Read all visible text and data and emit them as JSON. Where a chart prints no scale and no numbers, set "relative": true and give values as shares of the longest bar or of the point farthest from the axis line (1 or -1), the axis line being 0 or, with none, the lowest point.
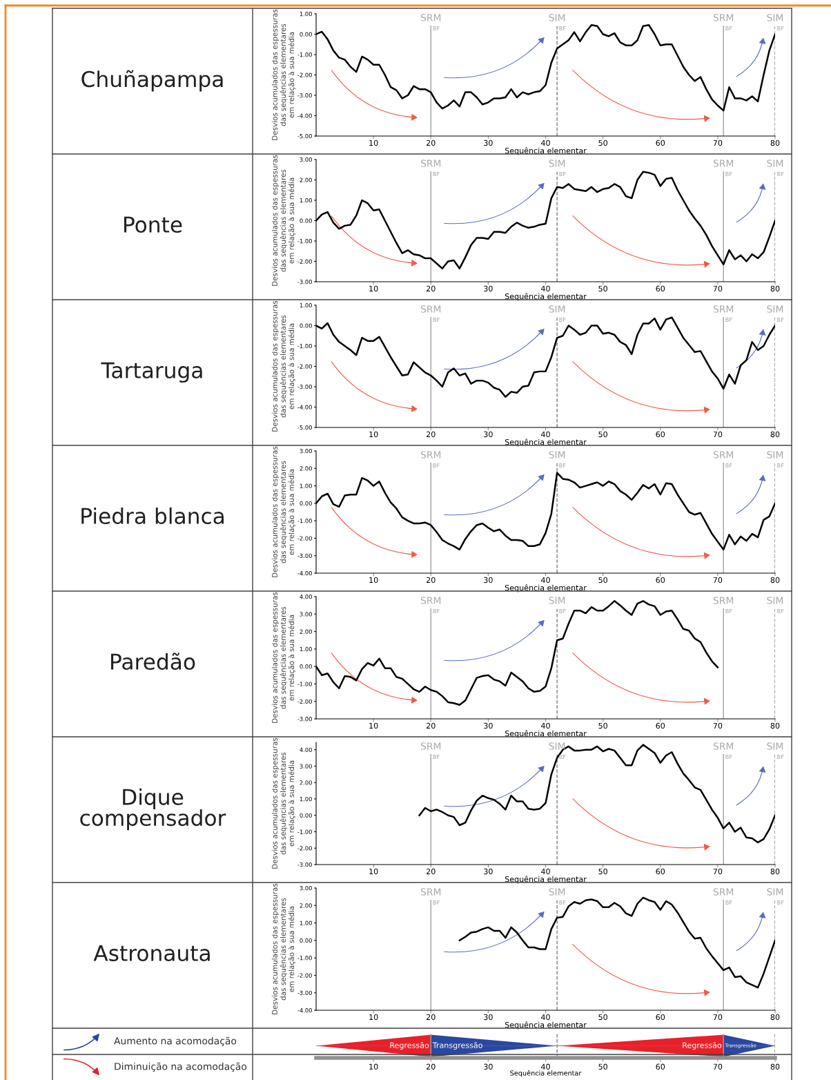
{
  "chart_data": [
    {
      "type": "line",
      "title": "Chuñapampa",
      "xlabel": "Sequência elementar",
      "ylabel": "Desvios acumulados das espessuras\ndas sequências elementares\nem relação à sua média",
      "xlim": [
        0,
        80
      ],
      "xticks": [
        10,
        20,
        30,
        40,
        50,
        60,
        70,
        80
      ],
      "ylim": [
        -5,
        1
      ],
      "yticks": [
        {
          "value": 1,
          "label": "1.00"
        },
        {
          "value": 0,
          "label": "0.00"
        },
        {
          "value": -1,
          "label": "-1.00"
        },
        {
          "value": -2,
          "label": "-2.00"
        },
        {
          "value": -3,
          "label": "-3.00"
        },
        {
          "value": -4,
          "label": "-4.00"
        },
        {
          "value": -5,
          "label": "-5.00"
        }
      ],
      "marker": "none",
      "line_style": "solid",
      "ref_lines": [
        {
          "axis": "x",
          "value": 20,
          "label": "SRM\nBF",
          "color": "#a0a0a0",
          "line_style": "solid"
        },
        {
          "axis": "x",
          "value": 42,
          "label": "SIM\nBF",
          "color": "#808080",
          "line_style": "dashed"
        },
        {
          "axis": "x",
          "value": 71,
          "label": "SRM\nBF",
          "color": "#a0a0a0",
          "line_style": "solid"
        },
        {
          "axis": "x",
          "value": 80,
          "label": "SIM\nBF",
          "color": "#808080",
          "line_style": "dashed"
        }
      ],
      "series": [
        {
          "color": "#000000",
          "x": [
            0,
            1,
            2,
            3,
            4,
            5,
            6,
            7,
            8,
            9,
            10,
            11,
            12,
            13,
            14,
            15,
            16,
            17,
            18,
            19,
            20,
            21,
            22,
            23,
            24,
            25,
            26,
            27,
            28,
            29,
            30,
            31,
            32,
            33,
            34,
            35,
            36,
            37,
            38,
            39,
            40,
            41,
            42,
            43,
            44,
            45,
            46,
            47,
            48,
            49,
            50,
            51,
            52,
            53,
            54,
            55,
            56,
            57,
            58,
            59,
            60,
            61,
            62,
            63,
            64,
            65,
            66,
            67,
            68,
            69,
            70,
            71,
            72,
            73,
            74,
            75,
            76,
            77,
            78,
            79,
            80
          ],
          "values": [
            0,
            0.12,
            -0.25,
            -0.8,
            -1.15,
            -1.25,
            -1.6,
            -1.85,
            -1.1,
            -1.25,
            -1.5,
            -1.5,
            -2.0,
            -2.6,
            -2.75,
            -3.15,
            -3.0,
            -2.55,
            -2.7,
            -2.7,
            -2.85,
            -3.35,
            -3.65,
            -3.5,
            -3.25,
            -3.55,
            -2.85,
            -2.85,
            -3.1,
            -3.45,
            -3.35,
            -3.15,
            -3.15,
            -3.1,
            -2.7,
            -3.1,
            -2.85,
            -2.95,
            -2.85,
            -2.8,
            -2.5,
            -1.4,
            -0.7,
            -0.5,
            -0.3,
            0.1,
            -0.35,
            0.1,
            0.45,
            0.4,
            0.0,
            -0.1,
            0.05,
            -0.4,
            -0.55,
            -0.55,
            -0.3,
            0.4,
            0.45,
            0.0,
            -0.55,
            -0.5,
            -0.5,
            -1.05,
            -1.6,
            -2.0,
            -2.3,
            -2.1,
            -2.7,
            -3.2,
            -3.5,
            -3.75,
            -2.6,
            -3.15,
            -3.15,
            -3.25,
            -3.05,
            -3.3,
            -2.0,
            -0.8,
            0.0
          ]
        }
      ]
    },
    {
      "type": "line",
      "title": "Ponte",
      "xlabel": "Sequência elementar",
      "ylabel": "Desvios acumulados das espessuras\ndas sequências elementares\nem relação à sua média",
      "xlim": [
        0,
        80
      ],
      "xticks": [
        10,
        20,
        30,
        40,
        50,
        60,
        70,
        80
      ],
      "ylim": [
        -3,
        3
      ],
      "yticks": [
        {
          "value": 3,
          "label": "3.00"
        },
        {
          "value": 2,
          "label": "2.00"
        },
        {
          "value": 1,
          "label": "1.00"
        },
        {
          "value": 0,
          "label": "0.00"
        },
        {
          "value": -1,
          "label": "-1.00"
        },
        {
          "value": -2,
          "label": "-2.00"
        },
        {
          "value": -3,
          "label": "-3.00"
        }
      ],
      "marker": "none",
      "line_style": "solid",
      "ref_lines": [
        {
          "axis": "x",
          "value": 20,
          "label": "SRM\nBF",
          "color": "#a0a0a0",
          "line_style": "solid"
        },
        {
          "axis": "x",
          "value": 42,
          "label": "SIM\nBF",
          "color": "#808080",
          "line_style": "dashed"
        },
        {
          "axis": "x",
          "value": 71,
          "label": "SRM\nBF",
          "color": "#a0a0a0",
          "line_style": "solid"
        },
        {
          "axis": "x",
          "value": 80,
          "label": "SIM\nBF",
          "color": "#808080",
          "line_style": "dashed"
        }
      ],
      "series": [
        {
          "color": "#000000",
          "x": [
            0,
            1,
            2,
            3,
            4,
            5,
            6,
            7,
            8,
            9,
            10,
            11,
            12,
            13,
            14,
            15,
            16,
            17,
            18,
            19,
            20,
            21,
            22,
            23,
            24,
            25,
            26,
            27,
            28,
            29,
            30,
            31,
            32,
            33,
            34,
            35,
            36,
            37,
            38,
            39,
            40,
            41,
            42,
            43,
            44,
            45,
            46,
            47,
            48,
            49,
            50,
            51,
            52,
            53,
            54,
            55,
            56,
            57,
            58,
            59,
            60,
            61,
            62,
            63,
            64,
            65,
            66,
            67,
            68,
            69,
            70,
            71,
            72,
            73,
            74,
            75,
            76,
            77,
            78,
            79,
            80
          ],
          "values": [
            0,
            0.3,
            0.42,
            -0.1,
            -0.4,
            -0.25,
            -0.2,
            0.25,
            1.0,
            0.85,
            0.5,
            0.55,
            0.0,
            -0.55,
            -1.1,
            -1.6,
            -1.45,
            -1.65,
            -1.7,
            -1.85,
            -1.85,
            -2.1,
            -2.35,
            -2.0,
            -1.95,
            -2.35,
            -1.8,
            -1.2,
            -0.85,
            -0.85,
            -0.9,
            -0.55,
            -0.55,
            -0.6,
            -0.3,
            -0.1,
            -0.25,
            -0.35,
            -0.3,
            -0.2,
            -0.15,
            1.1,
            1.65,
            1.6,
            1.8,
            1.55,
            1.5,
            1.45,
            1.65,
            1.4,
            1.55,
            1.6,
            1.8,
            1.65,
            1.2,
            1.1,
            2.0,
            2.4,
            2.35,
            2.25,
            1.7,
            2.05,
            2.1,
            1.5,
            1.0,
            0.5,
            0.1,
            -0.25,
            -0.7,
            -1.25,
            -1.7,
            -2.15,
            -1.45,
            -1.9,
            -1.7,
            -2.0,
            -1.65,
            -1.85,
            -1.55,
            -0.8,
            0.0
          ]
        }
      ]
    },
    {
      "type": "line",
      "title": "Tartaruga",
      "xlabel": "Sequência elementar",
      "ylabel": "Desvios acumulados das espessuras\ndas sequências elementares\nem relação à sua média",
      "xlim": [
        0,
        80
      ],
      "xticks": [
        10,
        20,
        30,
        40,
        50,
        60,
        70,
        80
      ],
      "ylim": [
        -5,
        1
      ],
      "yticks": [
        {
          "value": 1,
          "label": "1.00"
        },
        {
          "value": 0,
          "label": "0.00"
        },
        {
          "value": -1,
          "label": "-1.00"
        },
        {
          "value": -2,
          "label": "-2.00"
        },
        {
          "value": -3,
          "label": "-3.00"
        },
        {
          "value": -4,
          "label": "-4.00"
        },
        {
          "value": -5,
          "label": "-5.00"
        }
      ],
      "marker": "none",
      "line_style": "solid",
      "ref_lines": [
        {
          "axis": "x",
          "value": 20,
          "label": "SRM\nBF",
          "color": "#a0a0a0",
          "line_style": "solid"
        },
        {
          "axis": "x",
          "value": 42,
          "label": "SIM\nBF",
          "color": "#808080",
          "line_style": "dashed"
        },
        {
          "axis": "x",
          "value": 71,
          "label": "SRM\nBF",
          "color": "#a0a0a0",
          "line_style": "solid"
        },
        {
          "axis": "x",
          "value": 80,
          "label": "SIM\nBF",
          "color": "#808080",
          "line_style": "dashed"
        }
      ],
      "series": [
        {
          "color": "#000000",
          "x": [
            0,
            1,
            2,
            3,
            4,
            5,
            6,
            7,
            8,
            9,
            10,
            11,
            12,
            13,
            14,
            15,
            16,
            17,
            18,
            19,
            20,
            21,
            22,
            23,
            24,
            25,
            26,
            27,
            28,
            29,
            30,
            31,
            32,
            33,
            34,
            35,
            36,
            37,
            38,
            39,
            40,
            41,
            42,
            43,
            44,
            45,
            46,
            47,
            48,
            49,
            50,
            51,
            52,
            53,
            54,
            55,
            56,
            57,
            58,
            59,
            60,
            61,
            62,
            63,
            64,
            65,
            66,
            67,
            68,
            69,
            70,
            71,
            72,
            73,
            74,
            75,
            76,
            77,
            78,
            79,
            80
          ],
          "values": [
            0,
            -0.15,
            0.12,
            -0.45,
            -0.8,
            -1.0,
            -1.2,
            -1.45,
            -0.6,
            -0.75,
            -0.75,
            -0.55,
            -1.05,
            -1.55,
            -2.0,
            -2.45,
            -2.4,
            -1.8,
            -2.05,
            -2.3,
            -2.45,
            -2.7,
            -3.0,
            -2.3,
            -2.1,
            -2.45,
            -2.35,
            -2.85,
            -2.7,
            -2.7,
            -2.8,
            -3.05,
            -3.15,
            -3.5,
            -3.25,
            -3.3,
            -3.0,
            -2.95,
            -2.3,
            -2.25,
            -2.25,
            -1.55,
            -0.6,
            -0.5,
            0.0,
            -0.2,
            -0.45,
            -0.35,
            0.0,
            0.0,
            -0.4,
            -0.35,
            -0.45,
            -0.8,
            -0.95,
            -1.4,
            -0.45,
            0.1,
            0.1,
            0.35,
            -0.2,
            0.3,
            0.4,
            -0.1,
            -0.6,
            -0.95,
            -1.3,
            -1.25,
            -1.75,
            -2.25,
            -2.6,
            -3.1,
            -2.4,
            -2.85,
            -1.95,
            -1.7,
            -0.8,
            -1.2,
            -1.0,
            -0.45,
            0.0
          ]
        }
      ]
    },
    {
      "type": "line",
      "title": "Piedra blanca",
      "xlabel": "Sequência elementar",
      "ylabel": "Desvios acumulados das espessuras\ndas sequências elementares\nem relação à sua média",
      "xlim": [
        0,
        80
      ],
      "xticks": [
        10,
        20,
        30,
        40,
        50,
        60,
        70,
        80
      ],
      "ylim": [
        -4,
        3
      ],
      "yticks": [
        {
          "value": 3,
          "label": "3.00"
        },
        {
          "value": 2,
          "label": "2.00"
        },
        {
          "value": 1,
          "label": "1.00"
        },
        {
          "value": 0,
          "label": "0.00"
        },
        {
          "value": -1,
          "label": "-1.00"
        },
        {
          "value": -2,
          "label": "-2.00"
        },
        {
          "value": -3,
          "label": "-3.00"
        },
        {
          "value": -4,
          "label": "-4.00"
        }
      ],
      "marker": "none",
      "line_style": "solid",
      "ref_lines": [
        {
          "axis": "x",
          "value": 20,
          "label": "SRM\nBF",
          "color": "#a0a0a0",
          "line_style": "solid"
        },
        {
          "axis": "x",
          "value": 42,
          "label": "SIM\nBF",
          "color": "#808080",
          "line_style": "dashed"
        },
        {
          "axis": "x",
          "value": 71,
          "label": "SRM\nBF",
          "color": "#a0a0a0",
          "line_style": "solid"
        },
        {
          "axis": "x",
          "value": 80,
          "label": "SIM\nBF",
          "color": "#808080",
          "line_style": "dashed"
        }
      ],
      "series": [
        {
          "color": "#000000",
          "x": [
            0,
            1,
            2,
            3,
            4,
            5,
            6,
            7,
            8,
            9,
            10,
            11,
            12,
            13,
            14,
            15,
            16,
            17,
            18,
            19,
            20,
            21,
            22,
            23,
            24,
            25,
            26,
            27,
            28,
            29,
            30,
            31,
            32,
            33,
            34,
            35,
            36,
            37,
            38,
            39,
            40,
            41,
            42,
            43,
            44,
            45,
            46,
            47,
            48,
            49,
            50,
            51,
            52,
            53,
            54,
            55,
            56,
            57,
            58,
            59,
            60,
            61,
            62,
            63,
            64,
            65,
            66,
            67,
            68,
            69,
            70,
            71,
            72,
            73,
            74,
            75,
            76,
            77,
            78,
            79,
            80
          ],
          "values": [
            0,
            0.4,
            0.55,
            -0.05,
            -0.2,
            0.45,
            0.5,
            0.5,
            1.45,
            1.3,
            1.0,
            1.25,
            0.6,
            0.05,
            -0.3,
            -0.8,
            -1.0,
            -1.15,
            -1.15,
            -1.1,
            -1.25,
            -1.65,
            -2.1,
            -2.3,
            -2.45,
            -2.65,
            -2.05,
            -1.6,
            -1.25,
            -1.15,
            -1.4,
            -1.6,
            -1.5,
            -1.85,
            -2.1,
            -2.1,
            -2.15,
            -2.45,
            -2.45,
            -2.35,
            -1.7,
            -0.6,
            1.75,
            1.4,
            1.35,
            1.2,
            0.9,
            1.0,
            1.1,
            1.2,
            1.0,
            1.25,
            1.1,
            0.7,
            0.5,
            0.2,
            0.6,
            1.05,
            0.85,
            1.1,
            0.5,
            1.15,
            1.1,
            0.5,
            0.0,
            -0.5,
            -0.65,
            -0.55,
            -1.15,
            -1.75,
            -2.2,
            -2.65,
            -1.8,
            -2.35,
            -1.9,
            -2.15,
            -1.75,
            -1.95,
            -0.95,
            -0.75,
            0.0
          ]
        }
      ]
    },
    {
      "type": "line",
      "title": "Paredão",
      "xlabel": "Sequência elementar",
      "ylabel": "Desvios acumulados das espessuras\ndas sequências elementares\nem relação à sua média",
      "xlim": [
        0,
        80
      ],
      "xticks": [
        10,
        20,
        30,
        40,
        50,
        60,
        70,
        80
      ],
      "ylim": [
        -3,
        4
      ],
      "yticks": [
        {
          "value": 4,
          "label": "4.00"
        },
        {
          "value": 3,
          "label": "3.00"
        },
        {
          "value": 2,
          "label": "2.00"
        },
        {
          "value": 1,
          "label": "1.00"
        },
        {
          "value": 0,
          "label": "0.00"
        },
        {
          "value": -1,
          "label": "-1.00"
        },
        {
          "value": -2,
          "label": "-2.00"
        },
        {
          "value": -3,
          "label": "-3.00"
        }
      ],
      "marker": "none",
      "line_style": "solid",
      "ref_lines": [
        {
          "axis": "x",
          "value": 20,
          "label": "SRM\nBF",
          "color": "#a0a0a0",
          "line_style": "solid"
        },
        {
          "axis": "x",
          "value": 42,
          "label": "SIM\nBF",
          "color": "#808080",
          "line_style": "dashed"
        },
        {
          "axis": "x",
          "value": 71,
          "label": "SRM\nBF",
          "color": "#a0a0a0",
          "line_style": "solid"
        },
        {
          "axis": "x",
          "value": 80,
          "label": "SIM\nBF",
          "color": "#808080",
          "line_style": "dashed"
        }
      ],
      "series": [
        {
          "color": "#000000",
          "x": [
            0,
            1,
            2,
            3,
            4,
            5,
            6,
            7,
            8,
            9,
            10,
            11,
            12,
            13,
            14,
            15,
            16,
            17,
            18,
            19,
            20,
            21,
            22,
            23,
            24,
            25,
            26,
            27,
            28,
            29,
            30,
            31,
            32,
            33,
            34,
            35,
            36,
            37,
            38,
            39,
            40,
            41,
            42,
            43,
            44,
            45,
            46,
            47,
            48,
            49,
            50,
            51,
            52,
            53,
            54,
            55,
            56,
            57,
            58,
            59,
            60,
            61,
            62,
            63,
            64,
            65,
            66,
            67,
            68,
            69,
            70
          ],
          "values": [
            0,
            -0.5,
            -0.4,
            -0.9,
            -1.25,
            -0.55,
            -0.6,
            -0.8,
            -0.15,
            0.2,
            0.05,
            0.45,
            -0.1,
            -0.1,
            -0.6,
            -0.7,
            -1.0,
            -1.3,
            -1.45,
            -1.15,
            -1.35,
            -1.45,
            -1.7,
            -2.05,
            -2.1,
            -2.2,
            -1.95,
            -1.3,
            -0.65,
            -0.55,
            -0.5,
            -0.75,
            -0.85,
            -1.1,
            -0.35,
            -0.6,
            -0.85,
            -1.25,
            -1.45,
            -1.4,
            -1.15,
            -0.1,
            1.5,
            1.6,
            2.45,
            3.2,
            3.2,
            3.05,
            3.4,
            3.2,
            3.2,
            3.45,
            3.75,
            3.5,
            3.2,
            2.95,
            3.6,
            3.75,
            3.55,
            3.45,
            2.95,
            3.15,
            3.2,
            2.7,
            2.15,
            2.05,
            1.6,
            1.4,
            0.8,
            0.3,
            -0.05
          ]
        }
      ]
    },
    {
      "type": "line",
      "title": "Dique compensador",
      "xlabel": "Sequência elementar",
      "ylabel": "Desvios acumulados das espessuras\ndas sequências elementares\nem relação à sua média",
      "xlim": [
        0,
        80
      ],
      "xticks": [
        10,
        20,
        30,
        40,
        50,
        60,
        70,
        80
      ],
      "ylim": [
        -3,
        4.45
      ],
      "yticks": [
        {
          "value": 4,
          "label": "4.00"
        },
        {
          "value": 3,
          "label": "3.00"
        },
        {
          "value": 2,
          "label": "2.00"
        },
        {
          "value": 1,
          "label": "1.00"
        },
        {
          "value": 0,
          "label": "0.00"
        },
        {
          "value": -1,
          "label": "-1.00"
        },
        {
          "value": -2,
          "label": "-2.00"
        },
        {
          "value": -3,
          "label": "-3.00"
        }
      ],
      "marker": "none",
      "line_style": "solid",
      "ref_lines": [
        {
          "axis": "x",
          "value": 20,
          "label": "SRM\nBF",
          "color": "#a0a0a0",
          "line_style": "solid"
        },
        {
          "axis": "x",
          "value": 42,
          "label": "SIM\nBF",
          "color": "#808080",
          "line_style": "dashed"
        },
        {
          "axis": "x",
          "value": 71,
          "label": "SRM\nBF",
          "color": "#a0a0a0",
          "line_style": "solid"
        },
        {
          "axis": "x",
          "value": 80,
          "label": "SIM\nBF",
          "color": "#808080",
          "line_style": "dashed"
        }
      ],
      "series": [
        {
          "color": "#000000",
          "x": [
            18,
            19,
            20,
            21,
            22,
            23,
            24,
            25,
            26,
            27,
            28,
            29,
            30,
            31,
            32,
            33,
            34,
            35,
            36,
            37,
            38,
            39,
            40,
            41,
            42,
            43,
            44,
            45,
            46,
            47,
            48,
            49,
            50,
            51,
            52,
            53,
            54,
            55,
            56,
            57,
            58,
            59,
            60,
            61,
            62,
            63,
            64,
            65,
            66,
            67,
            68,
            69,
            70,
            71,
            72,
            73,
            74,
            75,
            76,
            77,
            78,
            79,
            80
          ],
          "values": [
            0,
            0.45,
            0.25,
            0.35,
            0.2,
            0.0,
            -0.1,
            -0.6,
            -0.45,
            0.3,
            0.9,
            1.2,
            1.05,
            0.95,
            0.7,
            0.35,
            1.2,
            0.85,
            0.85,
            0.4,
            0.35,
            0.4,
            0.75,
            2.5,
            3.5,
            4.0,
            4.2,
            3.95,
            3.95,
            4.0,
            4.0,
            4.2,
            3.9,
            4.05,
            3.95,
            3.5,
            3.05,
            3.05,
            3.95,
            4.3,
            4.05,
            3.8,
            3.2,
            3.65,
            3.85,
            3.15,
            2.55,
            2.15,
            1.7,
            1.55,
            0.95,
            0.35,
            -0.15,
            -0.8,
            -0.45,
            -1.0,
            -0.75,
            -1.35,
            -1.4,
            -1.65,
            -1.45,
            -0.85,
            0.0
          ]
        }
      ]
    },
    {
      "type": "line",
      "title": "Astronauta",
      "xlabel": "Sequência elementar",
      "ylabel": "Desvios acumulados das espessuras\ndas sequências elementares\nem relação à sua média",
      "xlim": [
        0,
        80
      ],
      "xticks": [
        10,
        20,
        30,
        40,
        50,
        60,
        70,
        80
      ],
      "ylim": [
        -4,
        3
      ],
      "yticks": [
        {
          "value": 3,
          "label": "3.00"
        },
        {
          "value": 2,
          "label": "2.00"
        },
        {
          "value": 1,
          "label": "1.00"
        },
        {
          "value": 0,
          "label": "0.00"
        },
        {
          "value": -1,
          "label": "-1.00"
        },
        {
          "value": -2,
          "label": "-2.00"
        },
        {
          "value": -3,
          "label": "-3.00"
        },
        {
          "value": -4,
          "label": "-4.00"
        }
      ],
      "marker": "none",
      "line_style": "solid",
      "ref_lines": [
        {
          "axis": "x",
          "value": 20,
          "label": "SRM\nBF",
          "color": "#a0a0a0",
          "line_style": "solid"
        },
        {
          "axis": "x",
          "value": 42,
          "label": "SIM\nBF",
          "color": "#808080",
          "line_style": "dashed"
        },
        {
          "axis": "x",
          "value": 71,
          "label": "SRM\nBF",
          "color": "#a0a0a0",
          "line_style": "solid"
        },
        {
          "axis": "x",
          "value": 80,
          "label": "SIM\nBF",
          "color": "#808080",
          "line_style": "dashed"
        }
      ],
      "series": [
        {
          "color": "#000000",
          "x": [
            25,
            26,
            27,
            28,
            29,
            30,
            31,
            32,
            33,
            34,
            35,
            36,
            37,
            38,
            39,
            40,
            41,
            42,
            43,
            44,
            45,
            46,
            47,
            48,
            49,
            50,
            51,
            52,
            53,
            54,
            55,
            56,
            57,
            58,
            59,
            60,
            61,
            62,
            63,
            64,
            65,
            66,
            67,
            68,
            69,
            70,
            71,
            72,
            73,
            74,
            75,
            76,
            77,
            78,
            79,
            80
          ],
          "values": [
            0,
            0.2,
            0.45,
            0.5,
            0.65,
            0.75,
            0.55,
            0.55,
            0.15,
            0.75,
            0.45,
            0.0,
            -0.4,
            -0.4,
            -0.5,
            -0.5,
            0.65,
            1.3,
            1.35,
            1.95,
            2.2,
            2.1,
            2.3,
            2.35,
            2.25,
            1.9,
            1.9,
            2.15,
            1.95,
            1.55,
            1.4,
            2.1,
            2.45,
            2.3,
            2.2,
            1.75,
            2.25,
            2.05,
            1.6,
            1.05,
            0.5,
            0.1,
            0.15,
            -0.45,
            -0.9,
            -1.3,
            -1.7,
            -1.55,
            -2.1,
            -2.05,
            -2.4,
            -2.55,
            -2.7,
            -1.9,
            -0.95,
            0.0
          ]
        }
      ]
    },
    {
      "type": "area",
      "relative": true,
      "xlabel": "Sequência elementar",
      "xlim": [
        0,
        80
      ],
      "xticks": [
        10,
        20,
        30,
        40,
        50,
        60,
        70,
        80
      ],
      "annotations": [
        "Aumento na acomodação",
        "Diminuição na acomodação"
      ],
      "ref_lines": [
        {
          "axis": "x",
          "value": 20,
          "color": "#a0a0a0",
          "line_style": "solid"
        },
        {
          "axis": "x",
          "value": 42,
          "color": "#808080",
          "line_style": "dashed"
        },
        {
          "axis": "x",
          "value": 71,
          "color": "#a0a0a0",
          "line_style": "solid"
        },
        {
          "axis": "x",
          "value": 80,
          "color": "#808080",
          "line_style": "dashed"
        }
      ],
      "series": [
        {
          "name": "Regressão",
          "color": "#e8202a",
          "x": [
            0,
            20
          ],
          "values": [
            0,
            1
          ]
        },
        {
          "name": "Transgressão",
          "color": "#2a48a0",
          "x": [
            20,
            42
          ],
          "values": [
            1,
            0
          ]
        },
        {
          "name": "Regressão",
          "color": "#e8202a",
          "x": [
            42,
            71
          ],
          "values": [
            0,
            1
          ]
        },
        {
          "name": "Transgressão",
          "color": "#2a48a0",
          "x": [
            71,
            80
          ],
          "values": [
            1,
            0
          ]
        }
      ]
    }
  ]
}
